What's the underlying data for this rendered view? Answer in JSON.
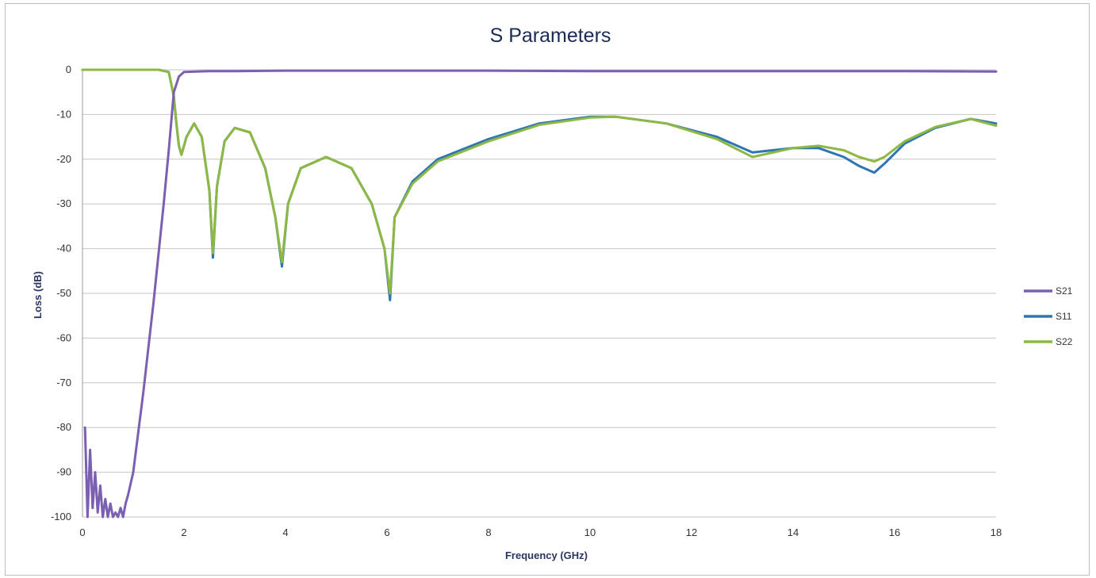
{
  "chart_data": {
    "type": "line",
    "title": "S Parameters",
    "xlabel": "Frequency (GHz)",
    "ylabel": "Loss (dB)",
    "xlim": [
      0,
      18
    ],
    "ylim": [
      -100,
      0
    ],
    "xticks": [
      0,
      2,
      4,
      6,
      8,
      10,
      12,
      14,
      16,
      18
    ],
    "yticks": [
      0,
      -10,
      -20,
      -30,
      -40,
      -50,
      -60,
      -70,
      -80,
      -90,
      -100
    ],
    "grid": "horizontal",
    "legend": "right",
    "series": [
      {
        "name": "S21",
        "color": "#7b5fb0",
        "x": [
          0.05,
          0.1,
          0.15,
          0.2,
          0.25,
          0.3,
          0.35,
          0.4,
          0.45,
          0.5,
          0.55,
          0.6,
          0.65,
          0.7,
          0.75,
          0.8,
          0.85,
          0.9,
          1.0,
          1.2,
          1.4,
          1.6,
          1.7,
          1.8,
          1.9,
          2.0,
          2.5,
          3,
          4,
          6,
          8,
          10,
          12,
          14,
          16,
          18
        ],
        "y": [
          -80,
          -100,
          -85,
          -98,
          -90,
          -99,
          -93,
          -100,
          -96,
          -100,
          -97,
          -100,
          -99,
          -100,
          -98,
          -100,
          -97,
          -95,
          -90,
          -72,
          -52,
          -30,
          -18,
          -5,
          -1.5,
          -0.5,
          -0.3,
          -0.3,
          -0.2,
          -0.2,
          -0.2,
          -0.3,
          -0.3,
          -0.3,
          -0.3,
          -0.4
        ]
      },
      {
        "name": "S11",
        "color": "#2e75b6",
        "x": [
          0,
          1.5,
          1.7,
          1.8,
          1.85,
          1.9,
          1.95,
          2.05,
          2.2,
          2.35,
          2.5,
          2.57,
          2.65,
          2.8,
          3.0,
          3.3,
          3.6,
          3.8,
          3.93,
          4.05,
          4.3,
          4.8,
          5.3,
          5.7,
          5.95,
          6.06,
          6.15,
          6.5,
          7,
          8,
          9,
          10,
          10.5,
          11.5,
          12.5,
          13.2,
          14,
          14.5,
          15,
          15.3,
          15.6,
          15.8,
          16.2,
          16.8,
          17.5,
          18
        ],
        "y": [
          0,
          0,
          -0.5,
          -6,
          -12,
          -17,
          -19,
          -15,
          -12,
          -15,
          -27,
          -42,
          -26,
          -16,
          -13,
          -14,
          -22,
          -33,
          -44,
          -30,
          -22,
          -19.5,
          -22,
          -30,
          -40,
          -51.5,
          -33,
          -25,
          -20,
          -15.5,
          -12,
          -10.5,
          -10.5,
          -12,
          -15,
          -18.5,
          -17.5,
          -17.5,
          -19.5,
          -21.5,
          -23,
          -21,
          -16.5,
          -13,
          -11,
          -12
        ]
      },
      {
        "name": "S22",
        "color": "#8db843",
        "x": [
          0,
          1.5,
          1.7,
          1.8,
          1.85,
          1.9,
          1.95,
          2.05,
          2.2,
          2.35,
          2.5,
          2.57,
          2.65,
          2.8,
          3.0,
          3.3,
          3.6,
          3.8,
          3.93,
          4.05,
          4.3,
          4.8,
          5.3,
          5.7,
          5.95,
          6.06,
          6.15,
          6.5,
          7,
          8,
          9,
          10,
          10.5,
          11.5,
          12.5,
          13.2,
          14,
          14.5,
          15,
          15.3,
          15.6,
          15.8,
          16.2,
          16.8,
          17.5,
          18
        ],
        "y": [
          0,
          0,
          -0.5,
          -6,
          -12,
          -17,
          -19,
          -15,
          -12,
          -15,
          -27,
          -41,
          -26,
          -16,
          -13,
          -14,
          -22,
          -33,
          -43,
          -30,
          -22,
          -19.5,
          -22,
          -30,
          -40,
          -50,
          -33,
          -25.5,
          -20.5,
          -16,
          -12.3,
          -10.7,
          -10.5,
          -12,
          -15.5,
          -19.5,
          -17.5,
          -17,
          -18,
          -19.5,
          -20.5,
          -19.5,
          -16,
          -12.8,
          -11,
          -12.5
        ]
      }
    ]
  }
}
